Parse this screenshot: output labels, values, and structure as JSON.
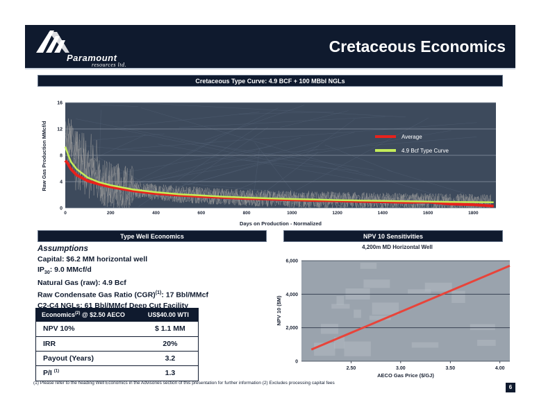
{
  "header": {
    "logo_name": "Paramount",
    "logo_sub": "resources ltd.",
    "title": "Cretaceous Economics"
  },
  "top_banner": "Cretaceous Type Curve: 4.9 BCF + 100 MBbl NGLs",
  "left_banner": "Type Well Economics",
  "right_banner": "NPV 10 Sensitivities",
  "assumptions": {
    "title": "Assumptions",
    "capital": "Capital: $6.2 MM horizontal well",
    "ip_prefix": "IP",
    "ip_sub": "30",
    "ip_suffix": ": 9.0 MMcf/d",
    "natural_gas": "Natural Gas (raw): 4.9 Bcf",
    "cgr_prefix": "Raw Condensate Gas Ratio (CGR)",
    "cgr_sup": "(1)",
    "cgr_suffix": ": 17 Bbl/MMcf",
    "ngls": "C2-C4 NGLs: 61 Bbl/MMcf Deep Cut Facility"
  },
  "econ_table": {
    "header_left_prefix": "Economics",
    "header_left_sup": "(2)",
    "header_left_suffix": " @ $2.50 AECO",
    "header_right": "US$40.00  WTI",
    "rows": [
      {
        "label": "NPV 10%",
        "value": "$ 1.1 MM",
        "sup": ""
      },
      {
        "label": "IRR",
        "value": "20%",
        "sup": ""
      },
      {
        "label": "Payout (Years)",
        "value": "3.2",
        "sup": ""
      },
      {
        "label": "P/I ",
        "value": "1.3",
        "sup": "(1)"
      }
    ]
  },
  "footnote": "(1) Please refer to the heading Well Economics in the Advisories section of this presentation for further information (2) Excludes processing capital fees",
  "page_number": "6",
  "chart_data": [
    {
      "type": "line",
      "title": "",
      "xlabel": "Days on Production - Normalized",
      "ylabel": "Raw Gas Production MMcf/d",
      "xlim": [
        0,
        1900
      ],
      "ylim": [
        0,
        16
      ],
      "x_ticks": [
        0,
        200,
        400,
        600,
        800,
        1000,
        1200,
        1400,
        1600,
        1800
      ],
      "y_ticks": [
        0,
        4,
        8,
        12,
        16
      ],
      "grid": true,
      "legend": "top-right",
      "colors": {
        "average": "#e8221c",
        "type_curve": "#c4ec5a",
        "wells": "#9a9a9a"
      },
      "series": [
        {
          "name": "Average",
          "x": [
            0,
            10,
            25,
            50,
            100,
            150,
            200,
            300,
            400,
            500,
            600,
            700,
            800,
            900,
            1000,
            1100,
            1200,
            1300,
            1400,
            1500,
            1600,
            1700,
            1800,
            1850,
            1890
          ],
          "values": [
            7.2,
            6.8,
            5.9,
            5.0,
            4.1,
            3.6,
            3.2,
            2.6,
            2.2,
            1.95,
            1.75,
            1.6,
            1.45,
            1.35,
            1.25,
            1.15,
            1.1,
            1.0,
            0.95,
            0.85,
            0.9,
            0.6,
            0.5,
            0.4,
            0.3
          ]
        },
        {
          "name": "4.9 Bcf Type Curve",
          "x": [
            0,
            10,
            25,
            50,
            100,
            150,
            200,
            300,
            400,
            500,
            600,
            700,
            800,
            900,
            1000,
            1100,
            1200,
            1300,
            1400,
            1500,
            1600,
            1700,
            1800,
            1890
          ],
          "values": [
            9.3,
            8.3,
            7.0,
            5.9,
            4.6,
            3.9,
            3.45,
            2.8,
            2.4,
            2.1,
            1.9,
            1.72,
            1.58,
            1.46,
            1.36,
            1.28,
            1.2,
            1.14,
            1.08,
            1.02,
            0.97,
            0.93,
            0.89,
            0.86
          ]
        }
      ]
    },
    {
      "type": "line",
      "title": "4,200m MD Horizontal Well",
      "xlabel": "AECO Gas Price ($/GJ)",
      "ylabel": "NPV 10 ($M)",
      "xlim": [
        2.0,
        4.1
      ],
      "ylim": [
        0,
        6000
      ],
      "x_ticks": [
        2.5,
        3.0,
        3.5,
        4.0
      ],
      "x_tick_labels": [
        "2.50",
        "3.00",
        "3.50",
        "4.00"
      ],
      "y_ticks": [
        0,
        2000,
        4000,
        6000
      ],
      "y_tick_labels": [
        "0",
        "2,000",
        "4,000",
        "6,000"
      ],
      "grid": true,
      "colors": {
        "line": "#e8443a"
      },
      "series": [
        {
          "name": "",
          "x": [
            2.1,
            4.1
          ],
          "values": [
            700,
            5700
          ]
        }
      ]
    }
  ]
}
